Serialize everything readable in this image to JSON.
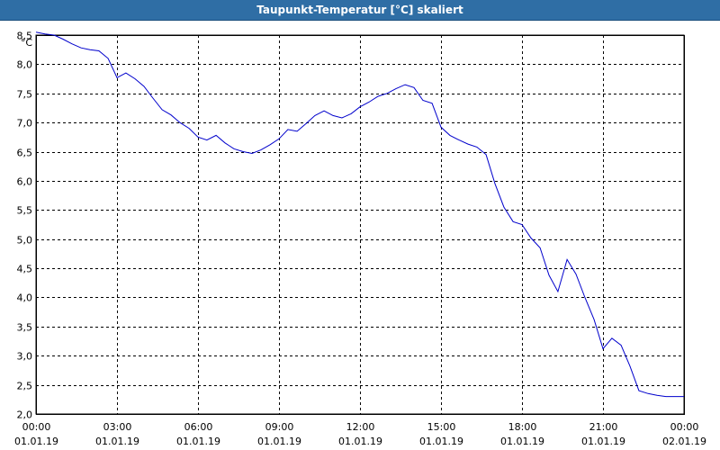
{
  "window": {
    "title": "Taupunkt-Temperatur [°C] skaliert"
  },
  "chart_data": {
    "type": "line",
    "title": "Taupunkt-Temperatur [°C] skaliert",
    "ylabel": "°C",
    "ylim": [
      2.0,
      8.5
    ],
    "yticks": [
      "2,0",
      "2,5",
      "3,0",
      "3,5",
      "4,0",
      "4,5",
      "5,0",
      "5,5",
      "6,0",
      "6,5",
      "7,0",
      "7,5",
      "8,0",
      "8,5"
    ],
    "xlim_hours": [
      0,
      24
    ],
    "xticks": [
      {
        "time": "00:00",
        "date": "01.01.19"
      },
      {
        "time": "03:00",
        "date": "01.01.19"
      },
      {
        "time": "06:00",
        "date": "01.01.19"
      },
      {
        "time": "09:00",
        "date": "01.01.19"
      },
      {
        "time": "12:00",
        "date": "01.01.19"
      },
      {
        "time": "15:00",
        "date": "01.01.19"
      },
      {
        "time": "18:00",
        "date": "01.01.19"
      },
      {
        "time": "21:00",
        "date": "01.01.19"
      },
      {
        "time": "00:00",
        "date": "02.01.19"
      }
    ],
    "grid": true,
    "line_color": "#0000cc",
    "series": [
      {
        "x": [
          0.0,
          0.33,
          0.67,
          1.0,
          1.33,
          1.67,
          2.0,
          2.33,
          2.67,
          3.0,
          3.33,
          3.67,
          4.0,
          4.33,
          4.67,
          5.0,
          5.33,
          5.67,
          6.0,
          6.33,
          6.67,
          7.0,
          7.33,
          7.67,
          8.0,
          8.33,
          8.67,
          9.0,
          9.33,
          9.67,
          10.0,
          10.33,
          10.67,
          11.0,
          11.33,
          11.67,
          12.0,
          12.33,
          12.67,
          13.0,
          13.33,
          13.67,
          14.0,
          14.33,
          14.67,
          15.0,
          15.33,
          15.67,
          16.0,
          16.33,
          16.67,
          17.0,
          17.33,
          17.67,
          18.0,
          18.33,
          18.67,
          19.0,
          19.33,
          19.67,
          20.0,
          20.33,
          20.67,
          21.0,
          21.33,
          21.67,
          22.0,
          22.33,
          22.67,
          23.0,
          23.33,
          23.67,
          24.0
        ],
        "y": [
          8.55,
          8.52,
          8.5,
          8.43,
          8.35,
          8.28,
          8.25,
          8.23,
          8.1,
          7.77,
          7.85,
          7.75,
          7.62,
          7.42,
          7.22,
          7.13,
          7.0,
          6.9,
          6.75,
          6.7,
          6.78,
          6.65,
          6.55,
          6.5,
          6.47,
          6.53,
          6.62,
          6.72,
          6.88,
          6.85,
          6.98,
          7.12,
          7.2,
          7.12,
          7.08,
          7.15,
          7.27,
          7.35,
          7.45,
          7.5,
          7.58,
          7.65,
          7.6,
          7.38,
          7.33,
          6.92,
          6.78,
          6.7,
          6.63,
          6.58,
          6.45,
          5.95,
          5.55,
          5.3,
          5.25,
          5.02,
          4.85,
          4.38,
          4.1,
          4.65,
          4.4,
          4.0,
          3.62,
          3.12,
          3.3,
          3.18,
          2.82,
          2.4,
          2.35,
          2.32,
          2.3,
          2.3,
          2.3
        ]
      }
    ]
  }
}
